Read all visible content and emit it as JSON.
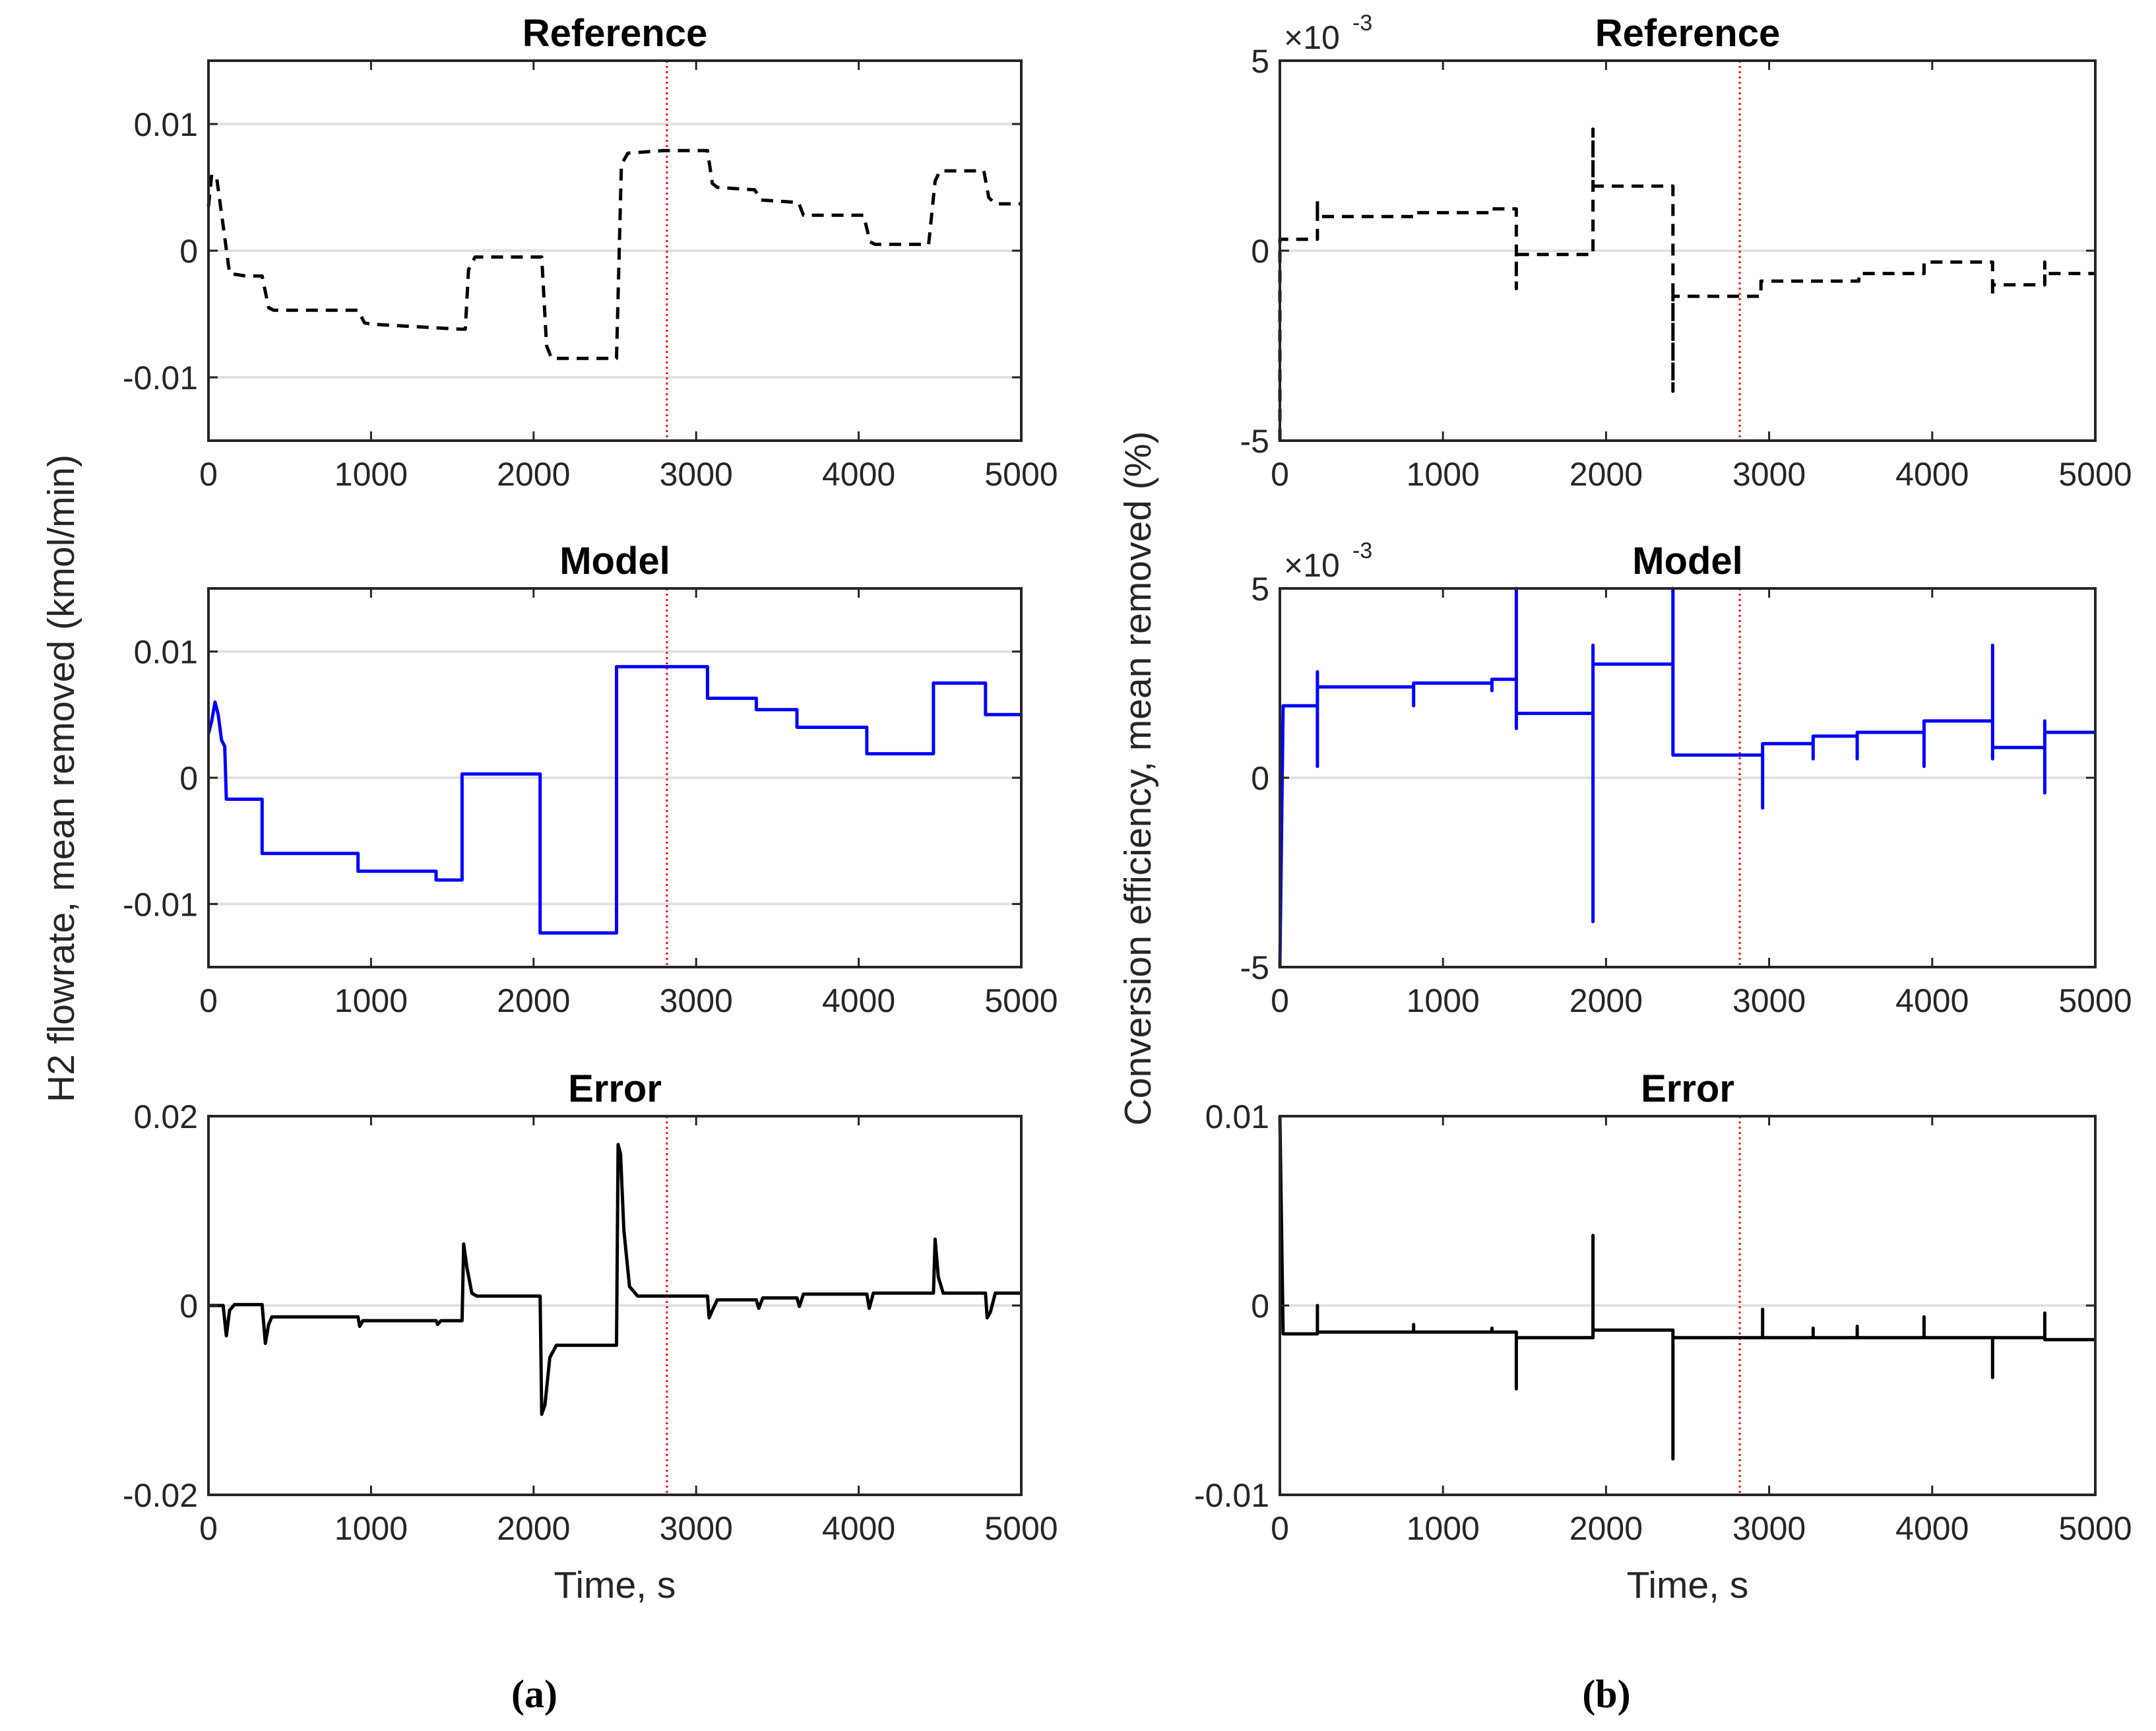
{
  "colors": {
    "reference": "#000000",
    "model": "#0000ff",
    "error": "#000000",
    "marker": "#ff0000",
    "grid": "#e1e1e1",
    "axis": "#262626"
  },
  "figure": {
    "ylabel_a": "H2 flowrate, mean removed (kmol/min)",
    "ylabel_b": "Conversion efficiency, mean removed (%)",
    "xlabel": "Time, s",
    "sub_a": "(a)",
    "sub_b": "(b)",
    "exponent_base": "×10",
    "exponent_power": "-3"
  },
  "chart_data": [
    {
      "id": "a-ref",
      "type": "line",
      "title": "Reference",
      "column": "a",
      "row": 0,
      "style": "dashed",
      "color_key": "reference",
      "xlim": [
        0,
        5000
      ],
      "ylim": [
        -0.015,
        0.015
      ],
      "xticks": [
        0,
        1000,
        2000,
        3000,
        4000,
        5000
      ],
      "xtick_labels": [
        "0",
        "1000",
        "2000",
        "3000",
        "4000",
        "5000"
      ],
      "yticks": [
        -0.01,
        0,
        0.01
      ],
      "ytick_labels": [
        "-0.01",
        "0",
        "0.01"
      ],
      "grid_y": [
        -0.01,
        0,
        0.01
      ],
      "marker_x": 2820,
      "xlabel": "",
      "points": [
        [
          0,
          0.0035
        ],
        [
          20,
          0.006
        ],
        [
          50,
          0.0058
        ],
        [
          90,
          0.002
        ],
        [
          130,
          -0.0018
        ],
        [
          230,
          -0.002
        ],
        [
          330,
          -0.002
        ],
        [
          370,
          -0.0045
        ],
        [
          400,
          -0.0047
        ],
        [
          920,
          -0.0047
        ],
        [
          960,
          -0.0057
        ],
        [
          1000,
          -0.0058
        ],
        [
          1550,
          -0.0062
        ],
        [
          1580,
          -0.0062
        ],
        [
          1600,
          -0.0015
        ],
        [
          1640,
          -0.0005
        ],
        [
          2050,
          -0.0005
        ],
        [
          2080,
          -0.0075
        ],
        [
          2110,
          -0.0085
        ],
        [
          2510,
          -0.0085
        ],
        [
          2540,
          0.0068
        ],
        [
          2580,
          0.0077
        ],
        [
          2800,
          0.0079
        ],
        [
          3070,
          0.0079
        ],
        [
          3100,
          0.0053
        ],
        [
          3130,
          0.005
        ],
        [
          3360,
          0.0048
        ],
        [
          3400,
          0.004
        ],
        [
          3630,
          0.0038
        ],
        [
          3660,
          0.0028
        ],
        [
          4030,
          0.0028
        ],
        [
          4070,
          0.0007
        ],
        [
          4100,
          0.0005
        ],
        [
          4430,
          0.0005
        ],
        [
          4470,
          0.0055
        ],
        [
          4500,
          0.0063
        ],
        [
          4770,
          0.0063
        ],
        [
          4800,
          0.0042
        ],
        [
          4840,
          0.0037
        ],
        [
          5000,
          0.0037
        ]
      ]
    },
    {
      "id": "a-model",
      "type": "line",
      "title": "Model",
      "column": "a",
      "row": 1,
      "style": "solid",
      "color_key": "model",
      "xlim": [
        0,
        5000
      ],
      "ylim": [
        -0.015,
        0.015
      ],
      "xticks": [
        0,
        1000,
        2000,
        3000,
        4000,
        5000
      ],
      "xtick_labels": [
        "0",
        "1000",
        "2000",
        "3000",
        "4000",
        "5000"
      ],
      "yticks": [
        -0.01,
        0,
        0.01
      ],
      "ytick_labels": [
        "-0.01",
        "0",
        "0.01"
      ],
      "grid_y": [
        -0.01,
        0,
        0.01
      ],
      "marker_x": 2820,
      "xlabel": "",
      "points": [
        [
          0,
          0.0035
        ],
        [
          20,
          0.0045
        ],
        [
          40,
          0.006
        ],
        [
          60,
          0.005
        ],
        [
          80,
          0.003
        ],
        [
          100,
          0.0025
        ],
        [
          110,
          -0.0017
        ],
        [
          330,
          -0.0017
        ],
        [
          330,
          -0.006
        ],
        [
          920,
          -0.006
        ],
        [
          920,
          -0.0074
        ],
        [
          1400,
          -0.0074
        ],
        [
          1400,
          -0.0081
        ],
        [
          1560,
          -0.0081
        ],
        [
          1560,
          0.0003
        ],
        [
          2040,
          0.0003
        ],
        [
          2040,
          -0.0123
        ],
        [
          2510,
          -0.0123
        ],
        [
          2510,
          0.0088
        ],
        [
          3070,
          0.0088
        ],
        [
          3070,
          0.0063
        ],
        [
          3370,
          0.0063
        ],
        [
          3370,
          0.0054
        ],
        [
          3620,
          0.0054
        ],
        [
          3620,
          0.004
        ],
        [
          4050,
          0.004
        ],
        [
          4050,
          0.0019
        ],
        [
          4460,
          0.0019
        ],
        [
          4460,
          0.0075
        ],
        [
          4780,
          0.0075
        ],
        [
          4780,
          0.005
        ],
        [
          5000,
          0.005
        ]
      ]
    },
    {
      "id": "a-err",
      "type": "line",
      "title": "Error",
      "column": "a",
      "row": 2,
      "style": "solid",
      "color_key": "error",
      "xlim": [
        0,
        5000
      ],
      "ylim": [
        -0.02,
        0.02
      ],
      "xticks": [
        0,
        1000,
        2000,
        3000,
        4000,
        5000
      ],
      "xtick_labels": [
        "0",
        "1000",
        "2000",
        "3000",
        "4000",
        "5000"
      ],
      "yticks": [
        -0.02,
        0,
        0.02
      ],
      "ytick_labels": [
        "-0.02",
        "0",
        "0.02"
      ],
      "grid_y": [
        0
      ],
      "marker_x": 2820,
      "xlabel": "Time, s",
      "points": [
        [
          0,
          0
        ],
        [
          90,
          0
        ],
        [
          110,
          -0.0032
        ],
        [
          130,
          -0.0005
        ],
        [
          160,
          0.0001
        ],
        [
          330,
          0.0001
        ],
        [
          350,
          -0.004
        ],
        [
          370,
          -0.002
        ],
        [
          390,
          -0.0012
        ],
        [
          920,
          -0.0012
        ],
        [
          930,
          -0.0022
        ],
        [
          950,
          -0.0016
        ],
        [
          1400,
          -0.0016
        ],
        [
          1410,
          -0.002
        ],
        [
          1430,
          -0.0016
        ],
        [
          1560,
          -0.0016
        ],
        [
          1570,
          0.0065
        ],
        [
          1590,
          0.004
        ],
        [
          1620,
          0.0013
        ],
        [
          1650,
          0.001
        ],
        [
          2040,
          0.001
        ],
        [
          2050,
          -0.0115
        ],
        [
          2070,
          -0.0105
        ],
        [
          2100,
          -0.0055
        ],
        [
          2140,
          -0.0042
        ],
        [
          2510,
          -0.0042
        ],
        [
          2520,
          0.017
        ],
        [
          2535,
          0.016
        ],
        [
          2555,
          0.008
        ],
        [
          2590,
          0.002
        ],
        [
          2640,
          0.001
        ],
        [
          3070,
          0.001
        ],
        [
          3080,
          -0.0013
        ],
        [
          3100,
          -0.0005
        ],
        [
          3130,
          0.0006
        ],
        [
          3370,
          0.0006
        ],
        [
          3385,
          -0.0003
        ],
        [
          3410,
          0.0008
        ],
        [
          3620,
          0.0008
        ],
        [
          3635,
          -0.0001
        ],
        [
          3660,
          0.0012
        ],
        [
          4050,
          0.0012
        ],
        [
          4065,
          -0.0003
        ],
        [
          4090,
          0.0013
        ],
        [
          4460,
          0.0013
        ],
        [
          4470,
          0.007
        ],
        [
          4490,
          0.003
        ],
        [
          4520,
          0.0013
        ],
        [
          4780,
          0.0013
        ],
        [
          4790,
          -0.0013
        ],
        [
          4810,
          -0.0007
        ],
        [
          4840,
          0.0013
        ],
        [
          5000,
          0.0013
        ]
      ]
    },
    {
      "id": "b-ref",
      "type": "line",
      "title": "Reference",
      "column": "b",
      "row": 0,
      "style": "dashed",
      "color_key": "reference",
      "xlim": [
        0,
        5000
      ],
      "ylim": [
        -5,
        5
      ],
      "exponent": true,
      "xticks": [
        0,
        1000,
        2000,
        3000,
        4000,
        5000
      ],
      "xtick_labels": [
        "0",
        "1000",
        "2000",
        "3000",
        "4000",
        "5000"
      ],
      "yticks": [
        -5,
        0,
        5
      ],
      "ytick_labels": [
        "-5",
        "0",
        "5"
      ],
      "grid_y": [
        0
      ],
      "marker_x": 2820,
      "xlabel": "",
      "points": [
        [
          0,
          -5
        ],
        [
          0,
          0.3
        ],
        [
          230,
          0.3
        ],
        [
          230,
          1.3
        ],
        [
          230,
          0.9
        ],
        [
          820,
          0.9
        ],
        [
          820,
          1
        ],
        [
          1300,
          1
        ],
        [
          1300,
          1.1
        ],
        [
          1450,
          1.1
        ],
        [
          1450,
          -1
        ],
        [
          1450,
          -0.1
        ],
        [
          1920,
          -0.1
        ],
        [
          1920,
          3.2
        ],
        [
          1920,
          1.7
        ],
        [
          2410,
          1.7
        ],
        [
          2410,
          -3.7
        ],
        [
          2410,
          -1.2
        ],
        [
          2950,
          -1.2
        ],
        [
          2950,
          -0.8
        ],
        [
          3550,
          -0.8
        ],
        [
          3550,
          -0.6
        ],
        [
          3950,
          -0.6
        ],
        [
          3950,
          -0.3
        ],
        [
          4370,
          -0.3
        ],
        [
          4370,
          -1.2
        ],
        [
          4370,
          -0.9
        ],
        [
          4690,
          -0.9
        ],
        [
          4690,
          -0.3
        ],
        [
          4690,
          -0.6
        ],
        [
          5000,
          -0.6
        ]
      ]
    },
    {
      "id": "b-model",
      "type": "line",
      "title": "Model",
      "column": "b",
      "row": 1,
      "style": "solid",
      "color_key": "model",
      "xlim": [
        0,
        5000
      ],
      "ylim": [
        -5,
        5
      ],
      "exponent": true,
      "xticks": [
        0,
        1000,
        2000,
        3000,
        4000,
        5000
      ],
      "xtick_labels": [
        "0",
        "1000",
        "2000",
        "3000",
        "4000",
        "5000"
      ],
      "yticks": [
        -5,
        0,
        5
      ],
      "ytick_labels": [
        "-5",
        "0",
        "5"
      ],
      "grid_y": [
        0
      ],
      "marker_x": 2820,
      "xlabel": "",
      "points": [
        [
          0,
          -5
        ],
        [
          20,
          1.9
        ],
        [
          230,
          1.9
        ],
        [
          230,
          0.3
        ],
        [
          230,
          2.8
        ],
        [
          230,
          2.4
        ],
        [
          820,
          2.4
        ],
        [
          820,
          1.9
        ],
        [
          820,
          2.5
        ],
        [
          1300,
          2.5
        ],
        [
          1300,
          2.3
        ],
        [
          1300,
          2.6
        ],
        [
          1450,
          2.6
        ],
        [
          1450,
          1.3
        ],
        [
          1450,
          5
        ],
        [
          1450,
          1.7
        ],
        [
          1920,
          1.7
        ],
        [
          1920,
          -3.8
        ],
        [
          1920,
          3.5
        ],
        [
          1920,
          3
        ],
        [
          2410,
          3
        ],
        [
          2410,
          5
        ],
        [
          2410,
          0.6
        ],
        [
          2960,
          0.6
        ],
        [
          2960,
          -0.8
        ],
        [
          2960,
          0.9
        ],
        [
          3270,
          0.9
        ],
        [
          3270,
          0.5
        ],
        [
          3270,
          1.1
        ],
        [
          3540,
          1.1
        ],
        [
          3540,
          0.5
        ],
        [
          3540,
          1.2
        ],
        [
          3950,
          1.2
        ],
        [
          3950,
          0.3
        ],
        [
          3950,
          1.5
        ],
        [
          4370,
          1.5
        ],
        [
          4370,
          0.5
        ],
        [
          4370,
          3.5
        ],
        [
          4370,
          0.8
        ],
        [
          4690,
          0.8
        ],
        [
          4690,
          -0.4
        ],
        [
          4690,
          1.5
        ],
        [
          4690,
          1.2
        ],
        [
          5000,
          1.2
        ]
      ]
    },
    {
      "id": "b-err",
      "type": "line",
      "title": "Error",
      "column": "b",
      "row": 2,
      "style": "solid",
      "color_key": "error",
      "xlim": [
        0,
        5000
      ],
      "ylim": [
        -0.01,
        0.01
      ],
      "xticks": [
        0,
        1000,
        2000,
        3000,
        4000,
        5000
      ],
      "xtick_labels": [
        "0",
        "1000",
        "2000",
        "3000",
        "4000",
        "5000"
      ],
      "yticks": [
        -0.01,
        0,
        0.01
      ],
      "ytick_labels": [
        "-0.01",
        "0",
        "0.01"
      ],
      "grid_y": [
        0
      ],
      "marker_x": 2820,
      "xlabel": "Time, s",
      "points": [
        [
          0,
          0.01
        ],
        [
          20,
          -0.0015
        ],
        [
          230,
          -0.0015
        ],
        [
          230,
          0
        ],
        [
          230,
          -0.0014
        ],
        [
          820,
          -0.0014
        ],
        [
          820,
          -0.001
        ],
        [
          820,
          -0.0014
        ],
        [
          1300,
          -0.0014
        ],
        [
          1300,
          -0.0012
        ],
        [
          1300,
          -0.0014
        ],
        [
          1450,
          -0.0014
        ],
        [
          1450,
          -0.0044
        ],
        [
          1450,
          -0.0017
        ],
        [
          1920,
          -0.0017
        ],
        [
          1920,
          0.0037
        ],
        [
          1920,
          -0.0013
        ],
        [
          2410,
          -0.0013
        ],
        [
          2410,
          -0.0081
        ],
        [
          2410,
          -0.0017
        ],
        [
          2960,
          -0.0017
        ],
        [
          2960,
          -0.0002
        ],
        [
          2960,
          -0.0017
        ],
        [
          3270,
          -0.0017
        ],
        [
          3270,
          -0.0012
        ],
        [
          3270,
          -0.0017
        ],
        [
          3540,
          -0.0017
        ],
        [
          3540,
          -0.0011
        ],
        [
          3540,
          -0.0017
        ],
        [
          3950,
          -0.0017
        ],
        [
          3950,
          -0.0006
        ],
        [
          3950,
          -0.0017
        ],
        [
          4370,
          -0.0017
        ],
        [
          4370,
          -0.0038
        ],
        [
          4370,
          -0.0017
        ],
        [
          4690,
          -0.0017
        ],
        [
          4690,
          -0.0004
        ],
        [
          4690,
          -0.0018
        ],
        [
          5000,
          -0.0018
        ]
      ]
    }
  ]
}
